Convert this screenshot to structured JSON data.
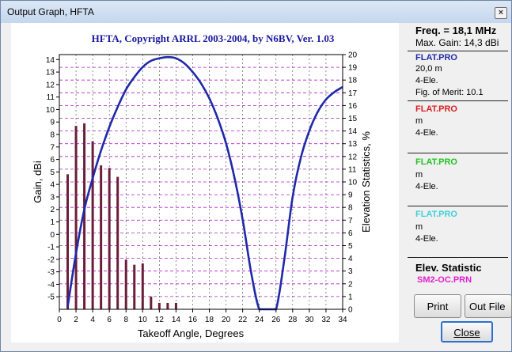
{
  "window": {
    "title": "Output Graph, HFTA",
    "close_glyph": "×"
  },
  "chart_data": {
    "type": "bar",
    "title": "HFTA, Copyright ARRL 2003-2004, by N6BV, Ver. 1.03",
    "xlabel": "Takeoff Angle, Degrees",
    "ylabel": "Gain, dBi",
    "y2label": "Elevation Statistics, %",
    "xlim": [
      0,
      34
    ],
    "ylim": [
      -6,
      14.4
    ],
    "y2lim": [
      0,
      20
    ],
    "x_ticks": [
      "0",
      "2",
      "4",
      "6",
      "8",
      "10",
      "12",
      "14",
      "16",
      "18",
      "20",
      "22",
      "24",
      "26",
      "28",
      "30",
      "32",
      "34"
    ],
    "y_ticks": [
      "-5",
      "-4",
      "-3",
      "-2",
      "-1",
      "0",
      "1",
      "2",
      "3",
      "4",
      "5",
      "6",
      "7",
      "8",
      "9",
      "10",
      "11",
      "12",
      "13",
      "14"
    ],
    "y2_ticks": [
      "0",
      "1",
      "2",
      "3",
      "4",
      "5",
      "6",
      "7",
      "8",
      "9",
      "10",
      "11",
      "12",
      "13",
      "14",
      "15",
      "16",
      "17",
      "18",
      "19",
      "20"
    ],
    "grid": true,
    "bar_color": "#6b1e3a",
    "line_color": "#1f2aa8",
    "bars": {
      "name": "SM2-OC.PRN",
      "x": [
        1,
        2,
        3,
        4,
        5,
        6,
        7,
        8,
        9,
        10,
        11,
        12,
        13,
        14
      ],
      "values": [
        10.6,
        14.4,
        14.6,
        13.2,
        11.3,
        11.1,
        10.4,
        3.9,
        3.5,
        3.6,
        1.0,
        0.5,
        0.5,
        0.5
      ]
    },
    "gain_curve": {
      "name": "FLAT.PRO",
      "x": [
        1,
        2,
        3,
        4,
        5,
        6,
        7,
        8,
        9,
        10,
        11,
        12,
        13,
        14,
        15,
        16,
        17,
        18,
        19,
        20,
        21,
        22,
        23,
        24,
        25,
        26,
        27,
        28,
        29,
        30,
        31,
        32,
        33,
        34
      ],
      "values": [
        -5.8,
        -1.5,
        2.0,
        4.5,
        6.7,
        8.6,
        10.2,
        11.6,
        12.6,
        13.4,
        13.9,
        14.1,
        14.2,
        14.1,
        13.7,
        13.0,
        12.1,
        10.9,
        9.3,
        7.3,
        4.6,
        1.2,
        -3.0,
        -6.0,
        -6.0,
        -6.0,
        -2.0,
        3.0,
        6.2,
        8.3,
        9.8,
        10.8,
        11.4,
        11.8
      ]
    }
  },
  "panel": {
    "freq": "Freq. = 18,1 MHz",
    "max_gain": "Max. Gain: 14,3 dBi",
    "entries": [
      {
        "file": "FLAT.PRO",
        "color": "#1f2aa8",
        "lines": [
          "20,0 m",
          "4-Ele.",
          "Fig. of Merit:  10.1"
        ]
      },
      {
        "file": "FLAT.PRO",
        "color": "#d82020",
        "lines": [
          " m",
          "4-Ele."
        ]
      },
      {
        "file": "FLAT.PRO",
        "color": "#22c322",
        "lines": [
          " m",
          "4-Ele."
        ]
      },
      {
        "file": "FLAT.PRO",
        "color": "#40d0d8",
        "lines": [
          " m",
          "4-Ele."
        ]
      }
    ],
    "elev_title": "Elev. Statistic",
    "elev_file": "SM2-OC.PRN",
    "elev_color": "#e020d0"
  },
  "buttons": {
    "print": "Print",
    "out_file": "Out File",
    "close": "Close"
  }
}
